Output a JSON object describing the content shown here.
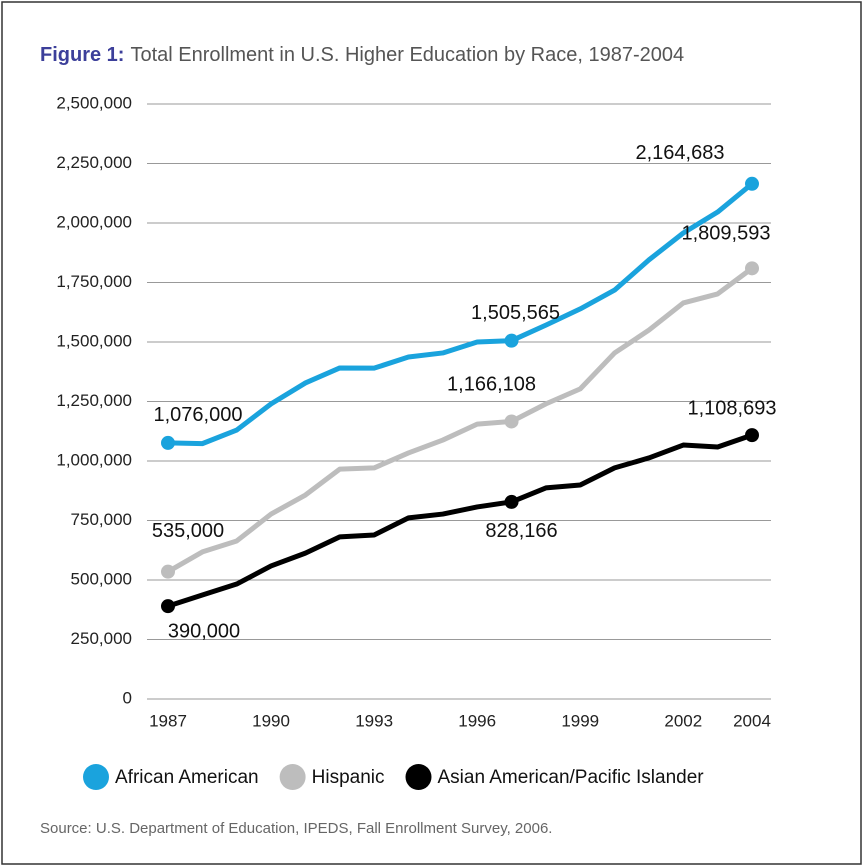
{
  "chart_data": {
    "type": "line",
    "title_prefix": "Figure 1:",
    "title": "Total Enrollment in U.S. Higher Education by Race, 1987-2004",
    "source": "Source: U.S. Department of Education, IPEDS, Fall Enrollment Survey, 2006.",
    "x": [
      1987,
      1988,
      1989,
      1990,
      1991,
      1992,
      1993,
      1994,
      1995,
      1996,
      1997,
      1998,
      1999,
      2000,
      2001,
      2002,
      2003,
      2004
    ],
    "xlim": [
      1987,
      2004
    ],
    "xticks": [
      1987,
      1990,
      1993,
      1996,
      1999,
      2002,
      2004
    ],
    "ylim": [
      0,
      2500000
    ],
    "yticks": [
      {
        "value": 0,
        "label": "0"
      },
      {
        "value": 250000,
        "label": "250,000"
      },
      {
        "value": 500000,
        "label": "500,000"
      },
      {
        "value": 750000,
        "label": "750,000"
      },
      {
        "value": 1000000,
        "label": "1,000,000"
      },
      {
        "value": 1250000,
        "label": "1,250,000"
      },
      {
        "value": 1500000,
        "label": "1,500,000"
      },
      {
        "value": 1750000,
        "label": "1,750,000"
      },
      {
        "value": 2000000,
        "label": "2,000,000"
      },
      {
        "value": 2250000,
        "label": "2,250,000"
      },
      {
        "value": 2500000,
        "label": "2,500,000"
      }
    ],
    "grid": true,
    "legend": "bottom",
    "series": [
      {
        "name": "African American",
        "color": "#1aa3dd",
        "values": [
          1076000,
          1073000,
          1130000,
          1240000,
          1328000,
          1391000,
          1390000,
          1437000,
          1454000,
          1500000,
          1505565,
          1571000,
          1639000,
          1718000,
          1845000,
          1958000,
          2046000,
          2164683
        ],
        "value_labels": [
          "1,076,000",
          null,
          null,
          null,
          null,
          null,
          null,
          null,
          null,
          null,
          "1,505,565",
          null,
          null,
          null,
          null,
          null,
          null,
          "2,164,683"
        ]
      },
      {
        "name": "Hispanic",
        "color": "#bdbdbd",
        "values": [
          535000,
          618000,
          664000,
          777000,
          857000,
          966000,
          971000,
          1034000,
          1088000,
          1155000,
          1166108,
          1240000,
          1303000,
          1454000,
          1550000,
          1664000,
          1702000,
          1809593
        ],
        "value_labels": [
          "535,000",
          null,
          null,
          null,
          null,
          null,
          null,
          null,
          null,
          null,
          "1,166,108",
          null,
          null,
          null,
          null,
          null,
          null,
          "1,809,593"
        ]
      },
      {
        "name": "Asian American/Pacific Islander",
        "color": "#000000",
        "values": [
          390000,
          437000,
          483000,
          559000,
          613000,
          681000,
          689000,
          761000,
          777000,
          807000,
          828166,
          887000,
          899000,
          971000,
          1013000,
          1067000,
          1059000,
          1108693
        ],
        "value_labels": [
          "390,000",
          null,
          null,
          null,
          null,
          null,
          null,
          null,
          null,
          null,
          "828,166",
          null,
          null,
          null,
          null,
          null,
          null,
          "1,108,693"
        ]
      }
    ]
  }
}
